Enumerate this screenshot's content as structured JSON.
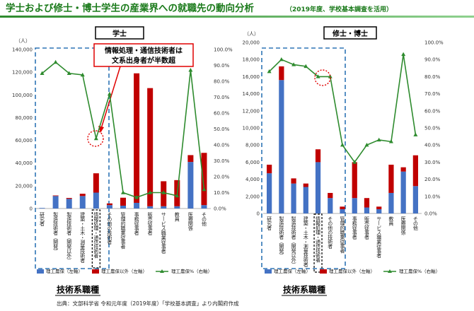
{
  "page": {
    "title": "学士および修士・博士学生の産業界への就職先の動向分析",
    "title_note": "（2019年度、学校基本調査を活用）",
    "source": "出典：文部科学省 令和元年度（2019年度）「学校基本調査」より内閣府作成",
    "accent_color": "#2e8b2e"
  },
  "chart_data": [
    {
      "type": "bar",
      "panel_label": "学士",
      "left_unit": "（人）",
      "categories": [
        "研究者",
        "製造技術者（開発）",
        "製造技術者（開発以外）",
        "建築・土木・測量技術者",
        "情報処理・通信技術者",
        "その他の技術者",
        "管理的職業従事者",
        "事務従事者",
        "販売従事者",
        "サービス職業従事者",
        "教員",
        "医療関係",
        "その他"
      ],
      "ylim": [
        0,
        140000
      ],
      "yticks": [
        "0",
        "20,000",
        "40,000",
        "60,000",
        "80,000",
        "100,000",
        "120,000",
        "140,000"
      ],
      "y2lim": [
        0,
        100
      ],
      "y2ticks": [
        "0.0%",
        "10.0%",
        "20.0%",
        "30.0%",
        "40.0%",
        "50.0%",
        "60.0%",
        "70.0%",
        "80.0%",
        "90.0%",
        "100.0%"
      ],
      "series": [
        {
          "name": "理工農保（左軸）",
          "kind": "bar",
          "color": "#4472c4",
          "values": [
            500,
            11000,
            8500,
            11000,
            14000,
            3000,
            2500,
            5000,
            2000,
            2000,
            2000,
            41000,
            3000
          ]
        },
        {
          "name": "理工農保以外（左軸）",
          "kind": "bar",
          "color": "#c00000",
          "values": [
            0,
            500,
            800,
            2000,
            17000,
            1500,
            7000,
            114000,
            104000,
            22000,
            23000,
            6000,
            46000
          ]
        },
        {
          "name": "理工農保%（右軸）",
          "kind": "line",
          "color": "#2e8b2e",
          "values": [
            85,
            92,
            85,
            84,
            44,
            72,
            10,
            7,
            10,
            10,
            8,
            87,
            12
          ]
        }
      ],
      "annotation": {
        "lines": [
          "情報処理・通信技術者は",
          "文系出身者が半数超"
        ]
      },
      "group_label": "技術系職種"
    },
    {
      "type": "bar",
      "panel_label": "修士・博士",
      "left_unit": "（人）",
      "categories": [
        "研究者",
        "製造技術者（開発）",
        "製造技術者（開発以外）",
        "建築・土木・測量技術者",
        "情報処理・通信技術者",
        "その他の技術者",
        "管理的職業従事者",
        "事務従事者",
        "販売従事者",
        "サービス職業従事者",
        "教員",
        "医療関係",
        "その他"
      ],
      "ylim": [
        0,
        20000
      ],
      "yticks": [
        "0",
        "2,000",
        "4,000",
        "6,000",
        "8,000",
        "10,000",
        "12,000",
        "14,000",
        "16,000",
        "18,000",
        "20,000"
      ],
      "y2lim": [
        0,
        100
      ],
      "y2ticks": [
        "0.0%",
        "10.0%",
        "20.0%",
        "30.0%",
        "40.0%",
        "50.0%",
        "60.0%",
        "70.0%",
        "80.0%",
        "90.0%",
        "100.0%"
      ],
      "series": [
        {
          "name": "理工農保（左軸）",
          "kind": "bar",
          "color": "#4472c4",
          "values": [
            4700,
            15600,
            3500,
            3100,
            6000,
            1800,
            500,
            1800,
            700,
            500,
            2400,
            4900,
            3200
          ]
        },
        {
          "name": "理工農保以外（左軸）",
          "kind": "bar",
          "color": "#c00000",
          "values": [
            1000,
            1600,
            600,
            400,
            1500,
            600,
            300,
            4200,
            1100,
            300,
            3300,
            500,
            3600
          ]
        },
        {
          "name": "理工農保%（右軸）",
          "kind": "line",
          "color": "#2e8b2e",
          "values": [
            83,
            90,
            87,
            86,
            80,
            80,
            40,
            30,
            40,
            43,
            42,
            93,
            46
          ]
        }
      ],
      "group_label": "技術系職種"
    }
  ]
}
